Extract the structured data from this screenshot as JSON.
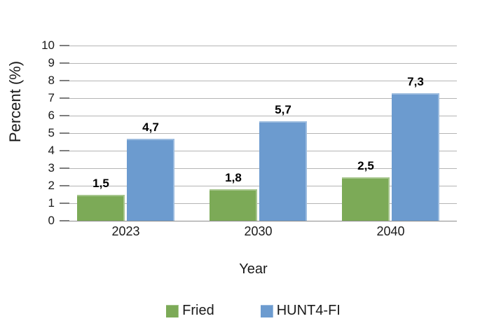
{
  "chart_data": {
    "type": "bar",
    "title": "",
    "xlabel": "Year",
    "ylabel": "Percent (%)",
    "categories": [
      "2023",
      "2030",
      "2040"
    ],
    "series": [
      {
        "name": "Fried",
        "color": "#7caa57",
        "values": [
          1.5,
          1.8,
          2.5
        ],
        "value_labels": [
          "1,5",
          "1,8",
          "2,5"
        ]
      },
      {
        "name": "HUNT4-FI",
        "color": "#6c9bcf",
        "values": [
          4.7,
          5.7,
          7.3
        ],
        "value_labels": [
          "4,7",
          "5,7",
          "7,3"
        ]
      }
    ],
    "ylim": [
      0,
      10
    ],
    "yticks": [
      0,
      1,
      2,
      3,
      4,
      5,
      6,
      7,
      8,
      9,
      10
    ],
    "grid": true,
    "legend_position": "bottom",
    "decimal_separator": ",",
    "colors": {
      "gridline": "#b5b5b5",
      "zero_line": "#8c8c8c",
      "tick_mark": "#7d7d7d",
      "text": "#1a1a1a"
    }
  }
}
